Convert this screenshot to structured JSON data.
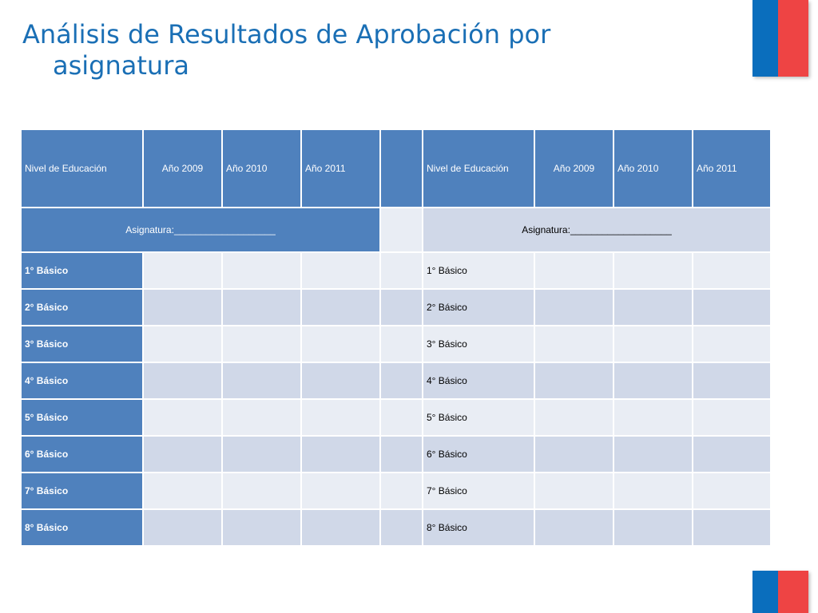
{
  "title": {
    "line1": "Análisis de Resultados de Aprobación por",
    "line2": "asignatura"
  },
  "table": {
    "headers": [
      "Nivel de Educación",
      "Año 2009",
      "Año 2010",
      "Año 2011"
    ],
    "subject_label": "Asignatura:___________________",
    "levels": [
      "1° Básico",
      "2° Básico",
      "3° Básico",
      "4° Básico",
      "5° Básico",
      "6° Básico",
      "7° Básico",
      "8° Básico"
    ]
  },
  "colors": {
    "title": "#1a6fb5",
    "header_blue": "#4f81bd",
    "row_light": "#e9edf4",
    "row_dark": "#d0d8e8",
    "flag_blue": "#0a6ebd",
    "flag_red": "#ee4444"
  }
}
